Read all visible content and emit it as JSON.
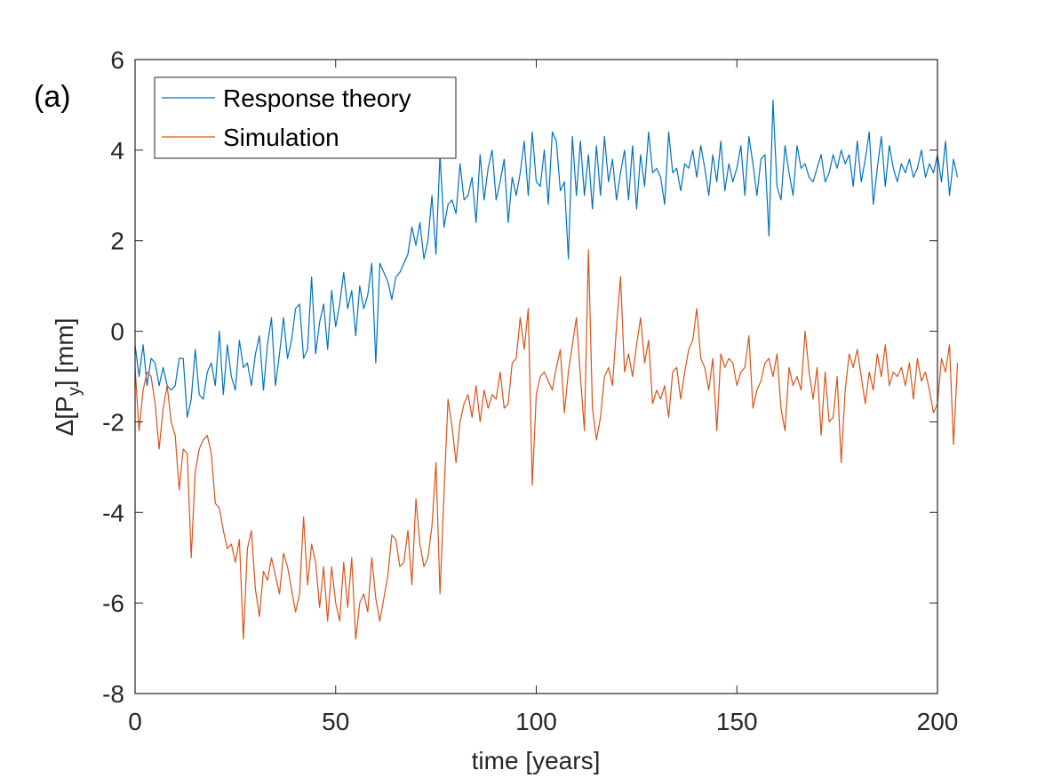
{
  "chart_data": {
    "type": "line",
    "panel_label": "(a)",
    "xlabel": "time [years]",
    "ylabel": {
      "prefix": "Δ[P",
      "subscript": "y",
      "suffix": "] [mm]"
    },
    "xlim": [
      0,
      200
    ],
    "ylim": [
      -8,
      6
    ],
    "xticks": [
      0,
      50,
      100,
      150,
      200
    ],
    "xtick_labels": [
      "0",
      "50",
      "100",
      "150",
      "200"
    ],
    "yticks": [
      -8,
      -6,
      -4,
      -2,
      0,
      2,
      4,
      6
    ],
    "ytick_labels": [
      "-8",
      "-6",
      "-4",
      "-2",
      "0",
      "2",
      "4",
      "6"
    ],
    "grid": false,
    "legend_position": "top-left",
    "series": [
      {
        "name": "Response theory",
        "color": "#0072BD",
        "x_start": 0,
        "x_step": 1,
        "values": [
          -0.3,
          -1.0,
          -0.3,
          -1.2,
          -0.6,
          -0.7,
          -1.2,
          -0.8,
          -1.2,
          -1.3,
          -1.2,
          -0.6,
          -0.6,
          -1.9,
          -1.5,
          -0.4,
          -1.4,
          -1.5,
          -0.9,
          -0.7,
          -1.2,
          0.0,
          -1.4,
          -0.3,
          -1.0,
          -1.3,
          -0.2,
          -0.8,
          -0.7,
          -1.2,
          -0.5,
          -0.1,
          -1.3,
          -0.3,
          0.3,
          -1.2,
          -0.5,
          0.3,
          -0.6,
          -0.2,
          0.5,
          0.6,
          -0.6,
          -0.4,
          1.2,
          -0.5,
          0.2,
          0.6,
          -0.4,
          0.9,
          0.1,
          0.6,
          1.3,
          0.5,
          0.9,
          -0.1,
          1.0,
          0.5,
          0.8,
          1.5,
          -0.7,
          1.5,
          1.3,
          1.1,
          0.7,
          1.2,
          1.3,
          1.5,
          1.7,
          2.3,
          1.9,
          2.4,
          1.6,
          2.0,
          3.0,
          1.7,
          3.9,
          2.3,
          2.8,
          2.9,
          2.6,
          3.7,
          2.9,
          3.0,
          3.4,
          2.4,
          3.9,
          2.9,
          3.6,
          4.0,
          2.9,
          3.3,
          3.8,
          2.4,
          3.4,
          3.0,
          3.5,
          4.2,
          3.0,
          4.4,
          3.3,
          3.2,
          4.0,
          2.8,
          4.4,
          4.2,
          3.1,
          3.3,
          1.6,
          4.3,
          3.0,
          4.2,
          3.0,
          3.9,
          2.7,
          4.1,
          3.0,
          4.3,
          3.3,
          3.8,
          2.9,
          3.5,
          4.0,
          2.9,
          4.1,
          2.7,
          3.9,
          3.2,
          4.4,
          3.5,
          3.6,
          3.4,
          2.8,
          4.4,
          3.5,
          3.6,
          3.1,
          3.7,
          3.6,
          4.0,
          3.4,
          4.1,
          3.6,
          3.0,
          3.9,
          3.3,
          4.2,
          3.1,
          3.7,
          3.3,
          3.6,
          4.1,
          3.0,
          4.3,
          3.7,
          3.0,
          3.8,
          3.9,
          2.1,
          5.1,
          3.2,
          2.9,
          4.1,
          3.5,
          3.0,
          4.1,
          3.6,
          3.7,
          3.4,
          3.3,
          3.6,
          3.9,
          3.3,
          3.5,
          3.9,
          3.6,
          4.0,
          3.7,
          3.9,
          3.2,
          4.2,
          3.3,
          3.8,
          4.4,
          2.8,
          3.6,
          4.3,
          3.2,
          4.1,
          3.6,
          3.3,
          3.7,
          3.5,
          3.8,
          3.4,
          3.6,
          4.0,
          3.4,
          3.7,
          3.5,
          3.9,
          3.3,
          4.2,
          3.0,
          3.8,
          3.4
        ]
      },
      {
        "name": "Simulation",
        "color": "#D95319",
        "x_start": 0,
        "x_step": 1,
        "values": [
          -0.8,
          -2.2,
          -1.3,
          -0.9,
          -1.0,
          -1.6,
          -2.6,
          -1.7,
          -1.2,
          -2.0,
          -2.3,
          -3.5,
          -2.6,
          -2.7,
          -5.0,
          -3.1,
          -2.6,
          -2.4,
          -2.3,
          -2.7,
          -3.8,
          -3.9,
          -4.4,
          -4.8,
          -4.7,
          -5.1,
          -4.6,
          -6.8,
          -4.8,
          -4.4,
          -5.7,
          -6.3,
          -5.3,
          -5.5,
          -5.0,
          -5.4,
          -5.8,
          -4.9,
          -5.2,
          -5.7,
          -6.2,
          -5.8,
          -4.1,
          -5.6,
          -4.7,
          -5.1,
          -6.1,
          -5.2,
          -6.4,
          -5.2,
          -6.0,
          -6.4,
          -5.1,
          -6.1,
          -5.0,
          -6.8,
          -6.0,
          -5.8,
          -6.2,
          -5.0,
          -5.9,
          -6.4,
          -5.9,
          -5.4,
          -4.5,
          -4.6,
          -5.2,
          -5.1,
          -4.4,
          -5.6,
          -3.7,
          -4.7,
          -5.2,
          -5.0,
          -4.3,
          -2.9,
          -5.8,
          -3.6,
          -1.5,
          -2.1,
          -2.9,
          -2.0,
          -1.6,
          -1.4,
          -1.9,
          -1.2,
          -2.0,
          -1.3,
          -1.7,
          -1.4,
          -1.5,
          -0.9,
          -1.7,
          -1.6,
          -0.7,
          -0.6,
          0.3,
          -0.4,
          0.5,
          -3.4,
          -1.4,
          -1.0,
          -0.9,
          -1.1,
          -1.3,
          -0.8,
          -0.4,
          -1.8,
          -0.9,
          -0.3,
          0.3,
          -1.0,
          -2.2,
          1.8,
          -1.7,
          -2.4,
          -1.9,
          -1.0,
          -0.8,
          -1.2,
          0.1,
          1.2,
          -0.9,
          -0.5,
          -1.0,
          -0.3,
          0.3,
          -0.7,
          -0.2,
          -1.6,
          -1.3,
          -1.5,
          -1.2,
          -1.9,
          -0.9,
          -0.8,
          -1.5,
          -0.9,
          -0.4,
          -0.2,
          0.5,
          -0.6,
          -0.8,
          -1.3,
          -0.6,
          -2.2,
          -0.5,
          -0.8,
          -0.6,
          -0.7,
          -1.2,
          -0.9,
          -0.8,
          -0.1,
          -1.7,
          -1.3,
          -1.1,
          -0.7,
          -0.6,
          -1.0,
          -0.5,
          -1.7,
          -2.2,
          -0.8,
          -1.2,
          -1.0,
          -1.3,
          0.0,
          -0.9,
          -1.5,
          -0.8,
          -2.3,
          -0.9,
          -2.0,
          -1.9,
          -1.0,
          -2.9,
          -1.3,
          -0.5,
          -0.8,
          -0.4,
          -1.0,
          -1.6,
          -0.9,
          -1.3,
          -0.5,
          -1.0,
          -0.3,
          -1.2,
          -0.9,
          -1.0,
          -0.8,
          -1.2,
          -0.7,
          -1.5,
          -0.6,
          -1.1,
          -0.9,
          -1.3,
          -1.8,
          -1.6,
          -0.6,
          -0.9,
          -0.3,
          -2.5,
          -0.7
        ]
      }
    ]
  }
}
